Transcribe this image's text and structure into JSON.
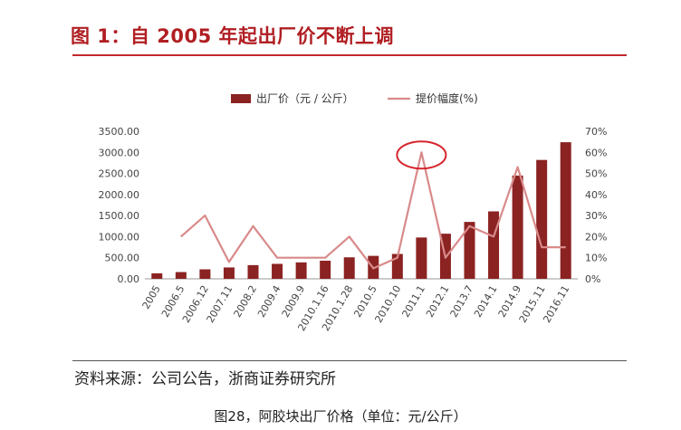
{
  "title": "图 1：自 2005 年起出厂价不断上调",
  "source": "资料来源：公司公告，浙商证券研究所",
  "caption": "图28，阿胶块出厂价格（单位：元/公斤）",
  "colors": {
    "bar": "#8b2322",
    "line": "#d98a8a",
    "title": "#b01e23",
    "highlight": "#d6262c"
  },
  "chart_data": {
    "type": "bar+line",
    "categories": [
      "2005",
      "2006.5",
      "2006.12",
      "2007.11",
      "2008.2",
      "2009.4",
      "2009.9",
      "2010.1.16",
      "2010.1.28",
      "2010.5",
      "2010.10",
      "2011.1",
      "2012.1",
      "2013.7",
      "2014.1",
      "2014.9",
      "2015.11",
      "2016.11"
    ],
    "series": [
      {
        "name": "出厂价（元 / 公斤）",
        "type": "bar",
        "axis": "left",
        "values": [
          130,
          160,
          225,
          270,
          325,
          355,
          390,
          430,
          510,
          545,
          590,
          980,
          1070,
          1350,
          1600,
          2450,
          2820,
          3240
        ]
      },
      {
        "name": "提价幅度(%)",
        "type": "line",
        "axis": "right",
        "values": [
          null,
          20,
          30,
          8,
          25,
          10,
          10,
          10,
          20,
          5,
          10,
          60,
          10,
          25,
          20,
          53,
          15,
          15
        ]
      }
    ],
    "y_left": {
      "min": 0,
      "max": 3500,
      "step": 500,
      "tick_labels": [
        "0.00",
        "500.00",
        "1000.00",
        "1500.00",
        "2000.00",
        "2500.00",
        "3000.00",
        "3500.00"
      ]
    },
    "y_right": {
      "min": 0,
      "max": 70,
      "step": 10,
      "tick_labels": [
        "0%",
        "10%",
        "20%",
        "30%",
        "40%",
        "50%",
        "60%",
        "70%"
      ]
    },
    "legend_placement": "top",
    "annotation": {
      "type": "circle",
      "category": "2011.1"
    }
  }
}
